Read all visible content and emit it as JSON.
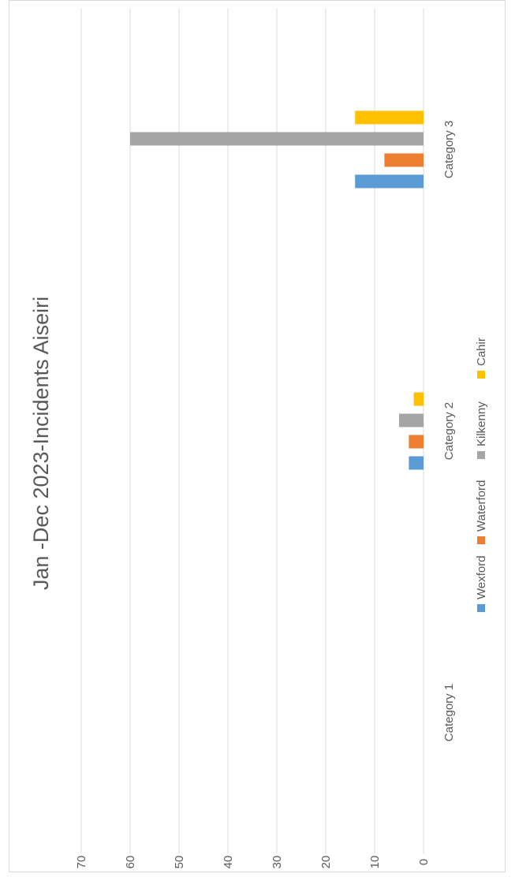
{
  "chart_data": {
    "type": "bar",
    "orientation": "vertical bars, page rotated 90 degrees counter-clockwise",
    "title": "Jan -Dec 2023-Incidents Aiseiri",
    "categories": [
      "Category 1",
      "Category 2",
      "Category 3"
    ],
    "series": [
      {
        "name": "Wexford",
        "color": "#5b9bd5",
        "values": [
          0,
          3,
          14
        ]
      },
      {
        "name": "Waterford",
        "color": "#ed7d31",
        "values": [
          0,
          3,
          8
        ]
      },
      {
        "name": "Kilkenny",
        "color": "#a5a5a5",
        "values": [
          0,
          5,
          60
        ]
      },
      {
        "name": "Cahir",
        "color": "#ffc000",
        "values": [
          0,
          2,
          14
        ]
      }
    ],
    "yticks": [
      "0",
      "10",
      "20",
      "30",
      "40",
      "50",
      "60",
      "70"
    ],
    "ylim": [
      0,
      70
    ],
    "grid": true,
    "legend": "bottom"
  }
}
